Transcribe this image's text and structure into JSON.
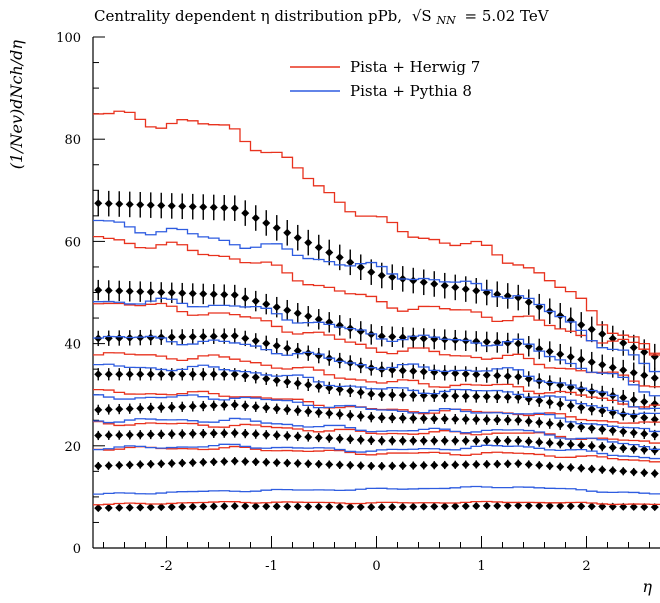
{
  "chart_data": {
    "type": "line",
    "title": "Centrality dependent η distribution pPb, √S_NN = 5.02 TeV",
    "title_main": "Centrality dependent η distribution pPb,",
    "title_energy": "√S",
    "title_sub": "NN",
    "title_value": "= 5.02 TeV",
    "xlabel": "η",
    "ylabel": "(1/N_ev) dN_ch/dη",
    "ylabel_display": "(1/Nev)dNch/dη",
    "xlim": [
      -2.7,
      2.7
    ],
    "ylim": [
      0,
      100
    ],
    "x_ticks": [
      -2,
      -1,
      0,
      1,
      2
    ],
    "x_tick_labels": [
      "-2",
      "-1",
      "0",
      "1",
      "2"
    ],
    "y_ticks": [
      0,
      20,
      40,
      60,
      80,
      100
    ],
    "y_tick_labels": [
      "0",
      "20",
      "40",
      "60",
      "80",
      "100"
    ],
    "grid": false,
    "legend_position": "top-center",
    "legend": [
      {
        "label": "Pista + Herwig 7",
        "color": "#e8321e"
      },
      {
        "label": "Pista + Pythia 8",
        "color": "#2e5ce0"
      }
    ],
    "colors": {
      "herwig": "#e8321e",
      "pythia": "#2e5ce0",
      "data": "#000000"
    },
    "x": [
      -2.7,
      -1.35,
      0.0,
      1.35,
      2.7
    ],
    "series": [
      {
        "kind": "data",
        "values": [
          67.5,
          66.5,
          53.5,
          49.0,
          37.0
        ],
        "err": 2.5
      },
      {
        "kind": "data",
        "values": [
          50.5,
          49.5,
          41.5,
          40.0,
          33.0
        ],
        "err": 2.0
      },
      {
        "kind": "data",
        "values": [
          41.0,
          41.5,
          35.0,
          33.5,
          28.0
        ],
        "err": 1.5
      },
      {
        "kind": "data",
        "values": [
          34.0,
          34.0,
          30.0,
          29.5,
          25.0
        ],
        "err": 1.2
      },
      {
        "kind": "data",
        "values": [
          27.0,
          28.0,
          25.5,
          25.0,
          22.0
        ],
        "err": 1.0
      },
      {
        "kind": "data",
        "values": [
          22.0,
          22.5,
          21.0,
          21.0,
          19.0
        ],
        "err": 0.9
      },
      {
        "kind": "data",
        "values": [
          16.0,
          17.0,
          16.0,
          16.5,
          14.5
        ],
        "err": 0.8
      },
      {
        "kind": "data",
        "values": [
          7.8,
          8.2,
          8.0,
          8.3,
          8.0
        ],
        "err": 0.6
      },
      {
        "kind": "herwig",
        "values": [
          85.0,
          82.0,
          63.5,
          56.5,
          37.0
        ]
      },
      {
        "kind": "herwig",
        "values": [
          61.0,
          57.0,
          48.0,
          45.0,
          38.0
        ]
      },
      {
        "kind": "herwig",
        "values": [
          48.5,
          45.5,
          39.0,
          37.0,
          32.0
        ]
      },
      {
        "kind": "herwig",
        "values": [
          38.0,
          37.0,
          32.5,
          31.5,
          27.5
        ]
      },
      {
        "kind": "herwig",
        "values": [
          30.5,
          30.0,
          27.0,
          26.5,
          24.0
        ]
      },
      {
        "kind": "herwig",
        "values": [
          24.5,
          24.0,
          22.5,
          22.5,
          20.5
        ]
      },
      {
        "kind": "herwig",
        "values": [
          19.5,
          19.5,
          18.5,
          18.5,
          17.0
        ]
      },
      {
        "kind": "herwig",
        "values": [
          8.5,
          9.0,
          8.8,
          9.0,
          8.5
        ]
      },
      {
        "kind": "pythia",
        "values": [
          64.0,
          60.0,
          54.5,
          49.5,
          34.0
        ]
      },
      {
        "kind": "pythia",
        "values": [
          48.5,
          47.5,
          41.5,
          40.0,
          30.0
        ]
      },
      {
        "kind": "pythia",
        "values": [
          41.5,
          40.0,
          35.5,
          34.5,
          27.0
        ]
      },
      {
        "kind": "pythia",
        "values": [
          35.5,
          35.0,
          31.0,
          30.5,
          25.5
        ]
      },
      {
        "kind": "pythia",
        "values": [
          29.5,
          29.5,
          27.0,
          26.5,
          22.5
        ]
      },
      {
        "kind": "pythia",
        "values": [
          25.0,
          25.0,
          23.0,
          23.0,
          19.5
        ]
      },
      {
        "kind": "pythia",
        "values": [
          19.5,
          20.0,
          19.0,
          20.0,
          17.5
        ]
      },
      {
        "kind": "pythia",
        "values": [
          10.5,
          11.2,
          11.5,
          12.0,
          10.5
        ]
      }
    ]
  }
}
